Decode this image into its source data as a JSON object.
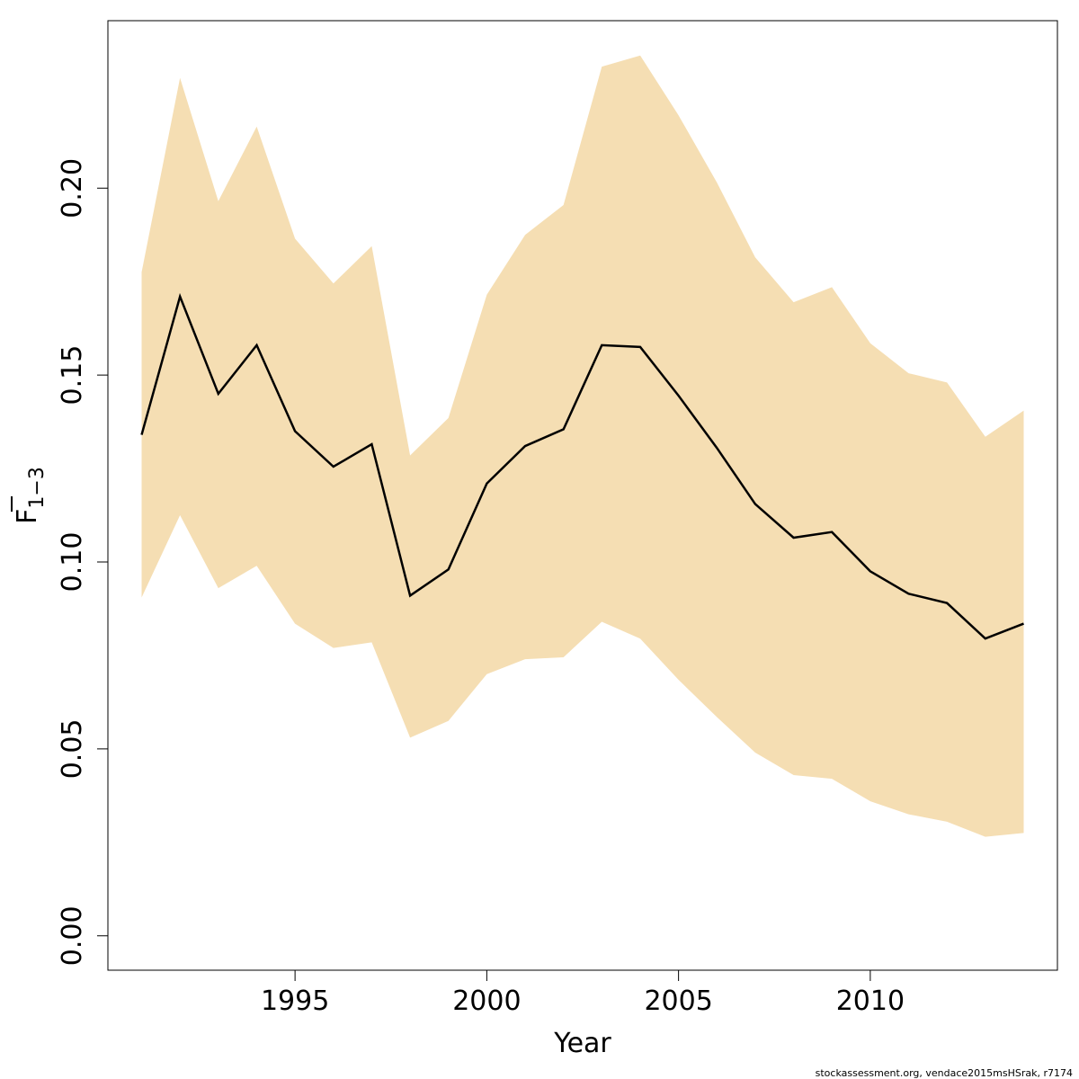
{
  "chart_data": {
    "type": "line",
    "title": "",
    "xlabel": "Year",
    "ylabel": {
      "main": "F",
      "subscript": "1−3"
    },
    "xlim": [
      1990.12,
      2014.88
    ],
    "ylim": [
      -0.0092,
      0.2448
    ],
    "x_ticks": [
      1995,
      2000,
      2005,
      2010
    ],
    "y_ticks": [
      0.0,
      0.05,
      0.1,
      0.15,
      0.2
    ],
    "x_tick_labels": [
      "1995",
      "2000",
      "2005",
      "2010"
    ],
    "y_tick_labels": [
      "0.00",
      "0.05",
      "0.10",
      "0.15",
      "0.20"
    ],
    "grid": false,
    "band_color": "#f5deb3",
    "line_color": "#000000",
    "x": [
      1991,
      1992,
      1993,
      1994,
      1995,
      1996,
      1997,
      1998,
      1999,
      2000,
      2001,
      2002,
      2003,
      2004,
      2005,
      2006,
      2007,
      2008,
      2009,
      2010,
      2011,
      2012,
      2013,
      2014
    ],
    "series": [
      {
        "role": "estimate",
        "values": [
          0.134,
          0.171,
          0.145,
          0.158,
          0.135,
          0.1255,
          0.1315,
          0.091,
          0.098,
          0.121,
          0.131,
          0.1355,
          0.158,
          0.1575,
          0.1445,
          0.1305,
          0.1155,
          0.1065,
          0.108,
          0.0975,
          0.0915,
          0.089,
          0.0795,
          0.0835
        ]
      },
      {
        "role": "upper",
        "values": [
          0.1775,
          0.2295,
          0.1965,
          0.2165,
          0.1865,
          0.1745,
          0.1845,
          0.1285,
          0.1385,
          0.1715,
          0.1875,
          0.1955,
          0.2325,
          0.2355,
          0.2195,
          0.2015,
          0.1815,
          0.1695,
          0.1735,
          0.1585,
          0.1505,
          0.148,
          0.1335,
          0.1405
        ]
      },
      {
        "role": "lower",
        "values": [
          0.0905,
          0.1125,
          0.093,
          0.099,
          0.0835,
          0.077,
          0.0785,
          0.053,
          0.0575,
          0.07,
          0.074,
          0.0745,
          0.084,
          0.0795,
          0.0685,
          0.0585,
          0.049,
          0.043,
          0.042,
          0.036,
          0.0325,
          0.0305,
          0.0265,
          0.0275
        ]
      }
    ]
  },
  "footer_text": "stockassessment.org, vendace2015msHSrak, r7174"
}
